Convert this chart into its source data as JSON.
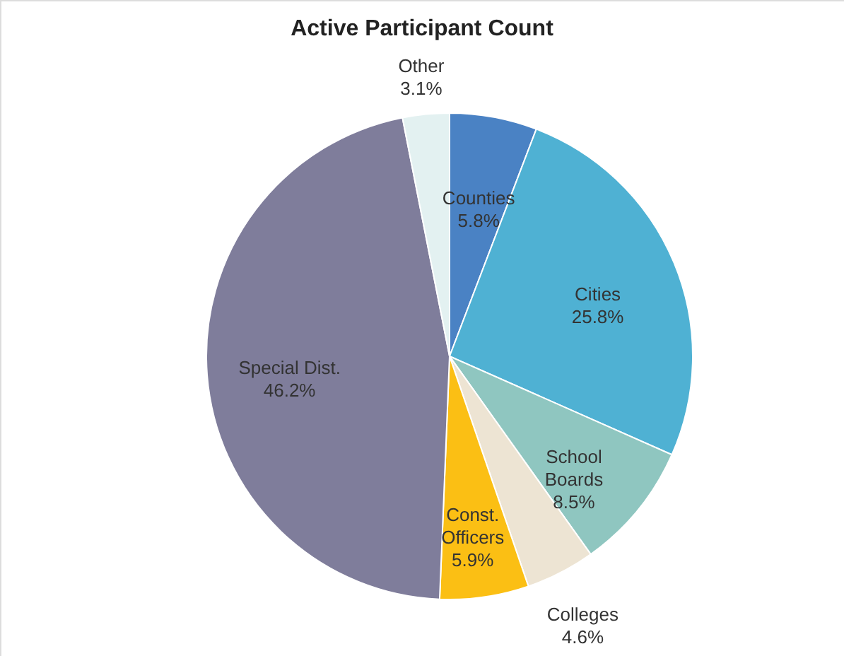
{
  "chart_data": {
    "type": "pie",
    "title": "Active Participant Count",
    "categories": [
      "Counties",
      "Cities",
      "School Boards",
      "Colleges",
      "Const. Officers",
      "Special Dist.",
      "Other"
    ],
    "values": [
      5.8,
      25.8,
      8.5,
      4.6,
      5.9,
      46.2,
      3.1
    ],
    "colors": [
      "#4a82c4",
      "#4fb1d3",
      "#8fc6c0",
      "#ede4d3",
      "#fbbf14",
      "#7f7d9b",
      "#e3f1f1"
    ],
    "value_labels": [
      "5.8%",
      "25.8%",
      "8.5%",
      "4.6%",
      "5.9%",
      "46.2%",
      "3.1%"
    ],
    "legend": false
  }
}
